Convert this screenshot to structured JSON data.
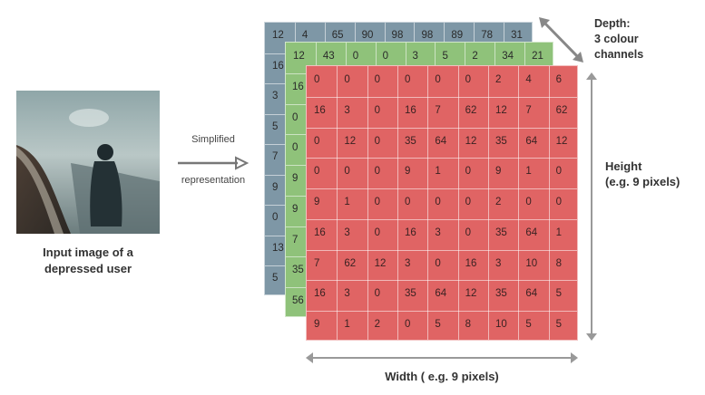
{
  "input": {
    "caption_line1": "Input image of a",
    "caption_line2": "depressed user"
  },
  "arrow": {
    "top_label": "Simplified",
    "bottom_label": "representation"
  },
  "labels": {
    "depth_line1": "Depth:",
    "depth_line2": "3 colour",
    "depth_line3": "channels",
    "height_line1": "Height",
    "height_line2": "(e.g. 9 pixels)",
    "width": "Width ( e.g. 9 pixels)"
  },
  "colors": {
    "blue_layer": "#7e97a6",
    "green_layer": "#8fc27a",
    "red_layer": "#e06464",
    "arrow": "#777777"
  },
  "blue_channel": {
    "top_row": [
      "12",
      "4",
      "65",
      "90",
      "98",
      "98",
      "89",
      "78",
      "31"
    ],
    "left_col": [
      "12",
      "16",
      "3",
      "5",
      "7",
      "9",
      "0",
      "13",
      "5"
    ]
  },
  "green_channel": {
    "top_row": [
      "12",
      "43",
      "0",
      "0",
      "3",
      "5",
      "2",
      "34",
      "21"
    ],
    "left_col": [
      "16",
      "0",
      "0",
      "9",
      "9",
      "7",
      "35",
      "56"
    ]
  },
  "red_channel": {
    "rows": [
      [
        "0",
        "0",
        "0",
        "0",
        "0",
        "0",
        "2",
        "4",
        "6"
      ],
      [
        "16",
        "3",
        "0",
        "16",
        "7",
        "62",
        "12",
        "7",
        "62"
      ],
      [
        "0",
        "12",
        "0",
        "35",
        "64",
        "12",
        "35",
        "64",
        "12"
      ],
      [
        "0",
        "0",
        "0",
        "9",
        "1",
        "0",
        "9",
        "1",
        "0"
      ],
      [
        "9",
        "1",
        "0",
        "0",
        "0",
        "0",
        "2",
        "0",
        "0"
      ],
      [
        "16",
        "3",
        "0",
        "16",
        "3",
        "0",
        "35",
        "64",
        "1"
      ],
      [
        "7",
        "62",
        "12",
        "3",
        "0",
        "16",
        "3",
        "10",
        "8"
      ],
      [
        "16",
        "3",
        "0",
        "35",
        "64",
        "12",
        "35",
        "64",
        "5"
      ],
      [
        "9",
        "1",
        "2",
        "0",
        "5",
        "8",
        "10",
        "5",
        "5"
      ]
    ]
  }
}
